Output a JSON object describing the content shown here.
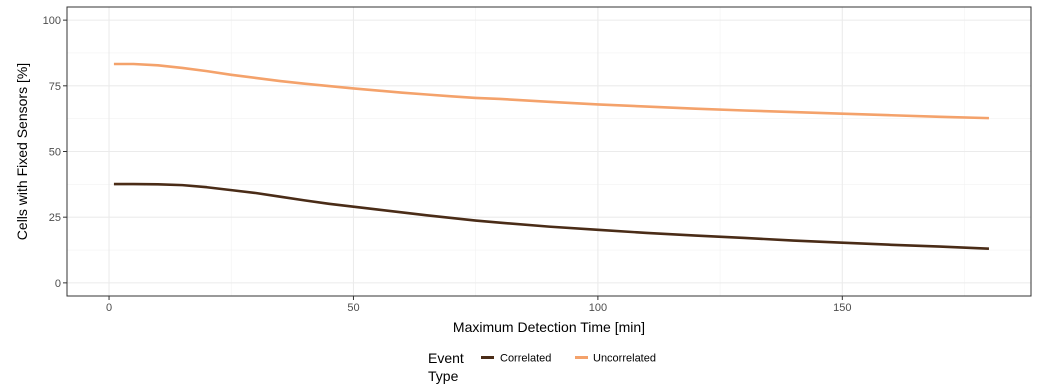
{
  "chart_data": {
    "type": "line",
    "title": "",
    "xlabel": "Maximum Detection Time [min]",
    "ylabel": "Cells with Fixed Sensors [%]",
    "xlim": [
      -8.6,
      188.6
    ],
    "ylim": [
      -5,
      105
    ],
    "x_ticks": [
      0,
      50,
      100,
      150
    ],
    "x_tick_labels": [
      "0",
      "50",
      "100",
      "150"
    ],
    "y_ticks": [
      0,
      25,
      50,
      75,
      100
    ],
    "y_tick_labels": [
      "0",
      "25",
      "50",
      "75",
      "100"
    ],
    "grid": true,
    "legend": {
      "title_lines": [
        "Event",
        "Type"
      ],
      "position": "bottom"
    },
    "series": [
      {
        "name": "Correlated",
        "color": "#4a2c17",
        "x": [
          1,
          5,
          10,
          15,
          20,
          25,
          30,
          35,
          40,
          45,
          50,
          55,
          60,
          65,
          70,
          75,
          80,
          90,
          100,
          110,
          120,
          130,
          140,
          150,
          160,
          170,
          180
        ],
        "y": [
          37.6,
          37.6,
          37.5,
          37.2,
          36.4,
          35.3,
          34.2,
          32.8,
          31.4,
          30.1,
          29.0,
          27.9,
          26.8,
          25.7,
          24.7,
          23.7,
          22.9,
          21.4,
          20.2,
          19.0,
          18.0,
          17.1,
          16.1,
          15.3,
          14.5,
          13.8,
          13.0
        ]
      },
      {
        "name": "Uncorrelated",
        "color": "#f4a26b",
        "x": [
          1,
          5,
          10,
          15,
          20,
          25,
          30,
          35,
          40,
          45,
          50,
          55,
          60,
          65,
          70,
          75,
          80,
          90,
          100,
          110,
          120,
          130,
          140,
          150,
          160,
          170,
          180
        ],
        "y": [
          83.3,
          83.3,
          82.8,
          81.8,
          80.6,
          79.2,
          78.0,
          76.8,
          75.8,
          74.9,
          74.0,
          73.2,
          72.4,
          71.7,
          71.0,
          70.4,
          70.0,
          68.9,
          67.9,
          67.1,
          66.3,
          65.6,
          65.0,
          64.4,
          63.8,
          63.2,
          62.7
        ]
      }
    ]
  }
}
